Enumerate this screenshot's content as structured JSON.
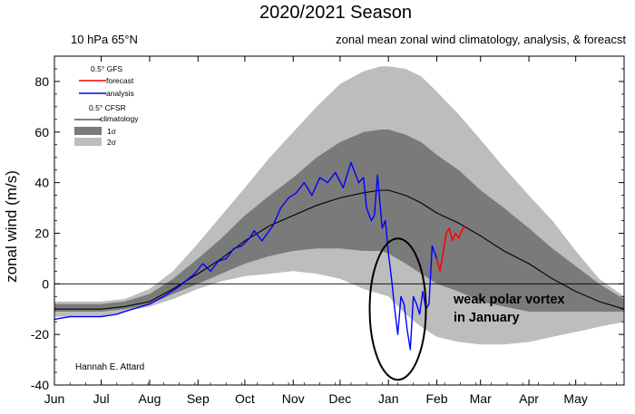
{
  "chart_data": {
    "type": "line",
    "title": "2020/2021 Season",
    "subtitle_left": "10 hPa 65°N",
    "subtitle_right": "zonal mean zonal wind climatology, analysis, & foreacst",
    "ylabel": "zonal wind (m/s)",
    "xlabel": "",
    "ylim": [
      -40,
      90
    ],
    "yticks": [
      80,
      60,
      40,
      20,
      0,
      -20,
      -40
    ],
    "xlim": [
      0,
      365
    ],
    "months": [
      {
        "label": "Jun",
        "day": 0
      },
      {
        "label": "Jul",
        "day": 30
      },
      {
        "label": "Aug",
        "day": 61
      },
      {
        "label": "Sep",
        "day": 92
      },
      {
        "label": "Oct",
        "day": 122
      },
      {
        "label": "Nov",
        "day": 153
      },
      {
        "label": "Dec",
        "day": 183
      },
      {
        "label": "Jan",
        "day": 214
      },
      {
        "label": "Feb",
        "day": 245
      },
      {
        "label": "Mar",
        "day": 273
      },
      {
        "label": "Apr",
        "day": 304
      },
      {
        "label": "May",
        "day": 334
      }
    ],
    "legend": {
      "gfs_header": "0.5°  GFS",
      "forecast_label": "forecast",
      "analysis_label": "analysis",
      "cfsr_header": "0.5°  CFSR",
      "climatology_label": "climatology",
      "sigma1_label": "1σ",
      "sigma2_label": "2σ"
    },
    "annotation": {
      "line1": "weak polar vortex",
      "line2": "in January",
      "ellipse_center_day": 220,
      "ellipse_center_value": -10
    },
    "credit": "Hannah E. Attard",
    "colors": {
      "analysis": "#0000ff",
      "forecast": "#ff0000",
      "climatology": "#000000",
      "sigma1": "#7a7a7a",
      "sigma2": "#bdbdbd",
      "zero_line": "#000000"
    },
    "climatology": {
      "x": [
        0,
        15,
        30,
        45,
        61,
        76,
        92,
        107,
        122,
        138,
        153,
        168,
        183,
        198,
        209,
        214,
        225,
        235,
        245,
        259,
        273,
        288,
        304,
        319,
        334,
        349,
        365
      ],
      "mean": [
        -10,
        -10,
        -10,
        -9,
        -7,
        -2,
        4,
        10,
        17,
        23,
        27,
        31,
        34,
        36,
        37,
        37,
        35,
        32,
        28,
        24,
        19,
        13,
        8,
        2,
        -3,
        -7,
        -10
      ],
      "sigma1_upper": [
        -8,
        -8,
        -8,
        -7,
        -4,
        2,
        10,
        18,
        27,
        35,
        42,
        50,
        56,
        60,
        61,
        61,
        59,
        56,
        51,
        45,
        37,
        30,
        22,
        14,
        7,
        0,
        -6
      ],
      "sigma1_lower": [
        -11,
        -11,
        -11,
        -10,
        -8,
        -4,
        0,
        4,
        8,
        11,
        13,
        14,
        14,
        13,
        13,
        12,
        8,
        4,
        0,
        -3,
        -7,
        -9,
        -11,
        -11,
        -11,
        -11,
        -11
      ],
      "sigma2_upper": [
        -7,
        -7,
        -7,
        -6,
        -2,
        5,
        16,
        27,
        38,
        50,
        60,
        70,
        79,
        84,
        86,
        86,
        85,
        82,
        76,
        67,
        57,
        46,
        35,
        25,
        13,
        2,
        -5
      ],
      "sigma2_lower": [
        -13,
        -13,
        -13,
        -11,
        -9,
        -6,
        -2,
        1,
        3,
        4,
        5,
        4,
        2,
        -2,
        -4,
        -5,
        -12,
        -17,
        -21,
        -23,
        -24,
        -24,
        -23,
        -21,
        -19,
        -17,
        -15
      ]
    },
    "analysis": {
      "x": [
        0,
        10,
        20,
        30,
        40,
        50,
        61,
        70,
        80,
        90,
        95,
        100,
        105,
        110,
        115,
        120,
        125,
        128,
        133,
        140,
        145,
        150,
        155,
        160,
        165,
        170,
        175,
        180,
        185,
        190,
        195,
        198,
        200,
        203,
        205,
        207,
        210,
        212,
        214,
        216,
        218,
        220,
        222,
        224,
        226,
        228,
        230,
        232,
        234,
        236,
        238,
        240,
        242,
        245
      ],
      "values": [
        -14,
        -13,
        -13,
        -13,
        -12,
        -10,
        -8,
        -5,
        -1,
        4,
        8,
        5,
        9,
        10,
        14,
        15,
        18,
        21,
        17,
        23,
        30,
        34,
        36,
        40,
        35,
        42,
        40,
        44,
        38,
        48,
        40,
        42,
        30,
        25,
        27,
        43,
        22,
        25,
        12,
        2,
        -10,
        -20,
        -5,
        -8,
        -18,
        -26,
        -5,
        -8,
        -12,
        -3,
        -10,
        -8,
        15,
        10
      ]
    },
    "forecast": {
      "x": [
        245,
        247,
        249,
        251,
        253,
        255,
        257,
        259,
        261,
        263
      ],
      "values": [
        10,
        5,
        12,
        20,
        22,
        17,
        20,
        18,
        21,
        23
      ]
    }
  }
}
